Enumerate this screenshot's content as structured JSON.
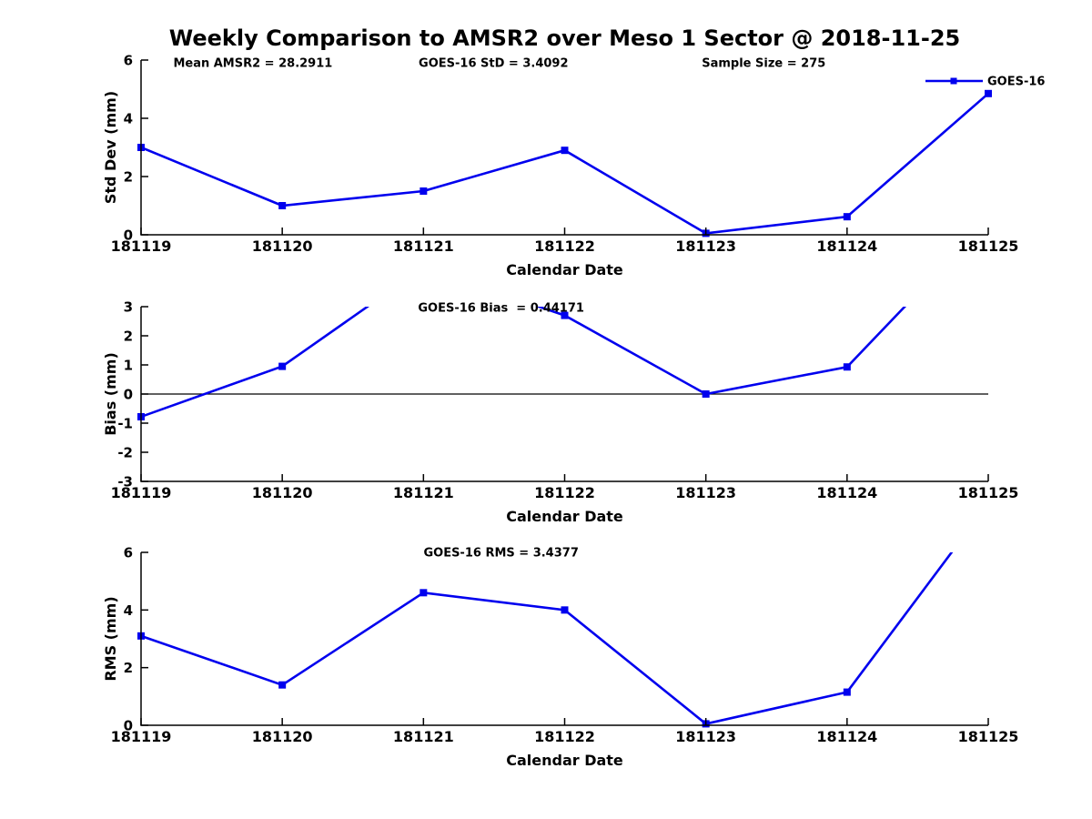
{
  "figure": {
    "title": "Weekly Comparison to AMSR2 over Meso 1 Sector @ 2018-11-25",
    "background": "#ffffff",
    "line_color": "#0000EE",
    "axis_color": "#000000",
    "legend_label": "GOES-16"
  },
  "chart_data": [
    {
      "type": "line",
      "categories": [
        "181119",
        "181120",
        "181121",
        "181122",
        "181123",
        "181124",
        "181125"
      ],
      "series": [
        {
          "name": "GOES-16",
          "values": [
            3.0,
            1.0,
            1.5,
            2.9,
            0.05,
            0.62,
            4.85
          ]
        }
      ],
      "xlabel": "Calendar Date",
      "ylabel": "Std Dev (mm)",
      "ylim": [
        0,
        6
      ],
      "yticks": [
        0,
        2,
        4,
        6
      ],
      "grid": false,
      "marker": "square",
      "clip_to_axes": true,
      "legend": {
        "label": "GOES-16",
        "position": "top-right",
        "box": false
      },
      "annotations": [
        {
          "text": "Mean AMSR2 = 28.2911",
          "fx": 0.132
        },
        {
          "text": "GOES-16 StD = 3.4092",
          "fx": 0.416
        },
        {
          "text": "Sample Size = 275",
          "fx": 0.735
        }
      ]
    },
    {
      "type": "line",
      "categories": [
        "181119",
        "181120",
        "181121",
        "181122",
        "181123",
        "181124",
        "181125"
      ],
      "series": [
        {
          "name": "GOES-16",
          "values": [
            -0.78,
            0.95,
            4.35,
            2.7,
            0.0,
            0.93,
            6.0
          ]
        }
      ],
      "xlabel": "Calendar Date",
      "ylabel": "Bias (mm)",
      "ylim": [
        -3,
        3
      ],
      "yticks": [
        -3,
        -2,
        -1,
        0,
        1,
        2,
        3
      ],
      "grid": false,
      "marker": "square",
      "zero_line": true,
      "clip_to_axes": true,
      "annotations": [
        {
          "text": "GOES-16 Bias  = 0.44171",
          "fx": 0.425
        }
      ]
    },
    {
      "type": "line",
      "categories": [
        "181119",
        "181120",
        "181121",
        "181122",
        "181123",
        "181124",
        "181125"
      ],
      "series": [
        {
          "name": "GOES-16",
          "values": [
            3.1,
            1.4,
            4.6,
            4.0,
            0.05,
            1.15,
            7.7
          ]
        }
      ],
      "xlabel": "Calendar Date",
      "ylabel": "RMS (mm)",
      "ylim": [
        0,
        6
      ],
      "yticks": [
        0,
        2,
        4,
        6
      ],
      "grid": false,
      "marker": "square",
      "clip_to_axes": true,
      "annotations": [
        {
          "text": "GOES-16 RMS = 3.4377",
          "fx": 0.425
        }
      ]
    }
  ]
}
